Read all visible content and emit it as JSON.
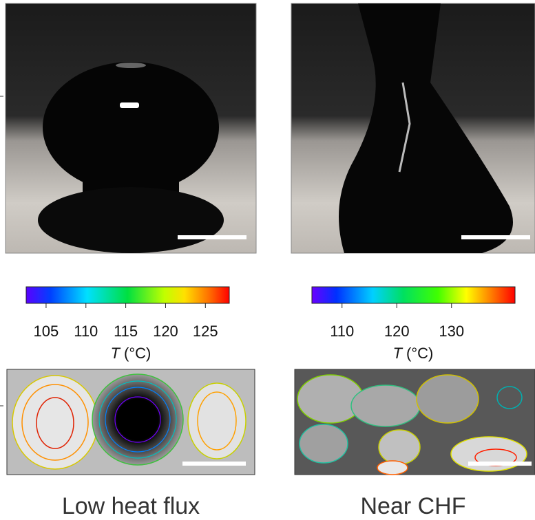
{
  "panels": [
    {
      "colorbar": {
        "lim": [
          102.5,
          128
        ],
        "ticks": [
          105,
          110,
          115,
          120,
          125
        ]
      },
      "axis_label": {
        "symbol": "T",
        "unit": "(°C)"
      },
      "caption": "Low heat flux"
    },
    {
      "colorbar": {
        "lim": [
          104.5,
          141.6
        ],
        "ticks": [
          110,
          120,
          130
        ]
      },
      "axis_label": {
        "symbol": "T",
        "unit": "(°C)"
      },
      "caption": "Near CHF"
    }
  ]
}
